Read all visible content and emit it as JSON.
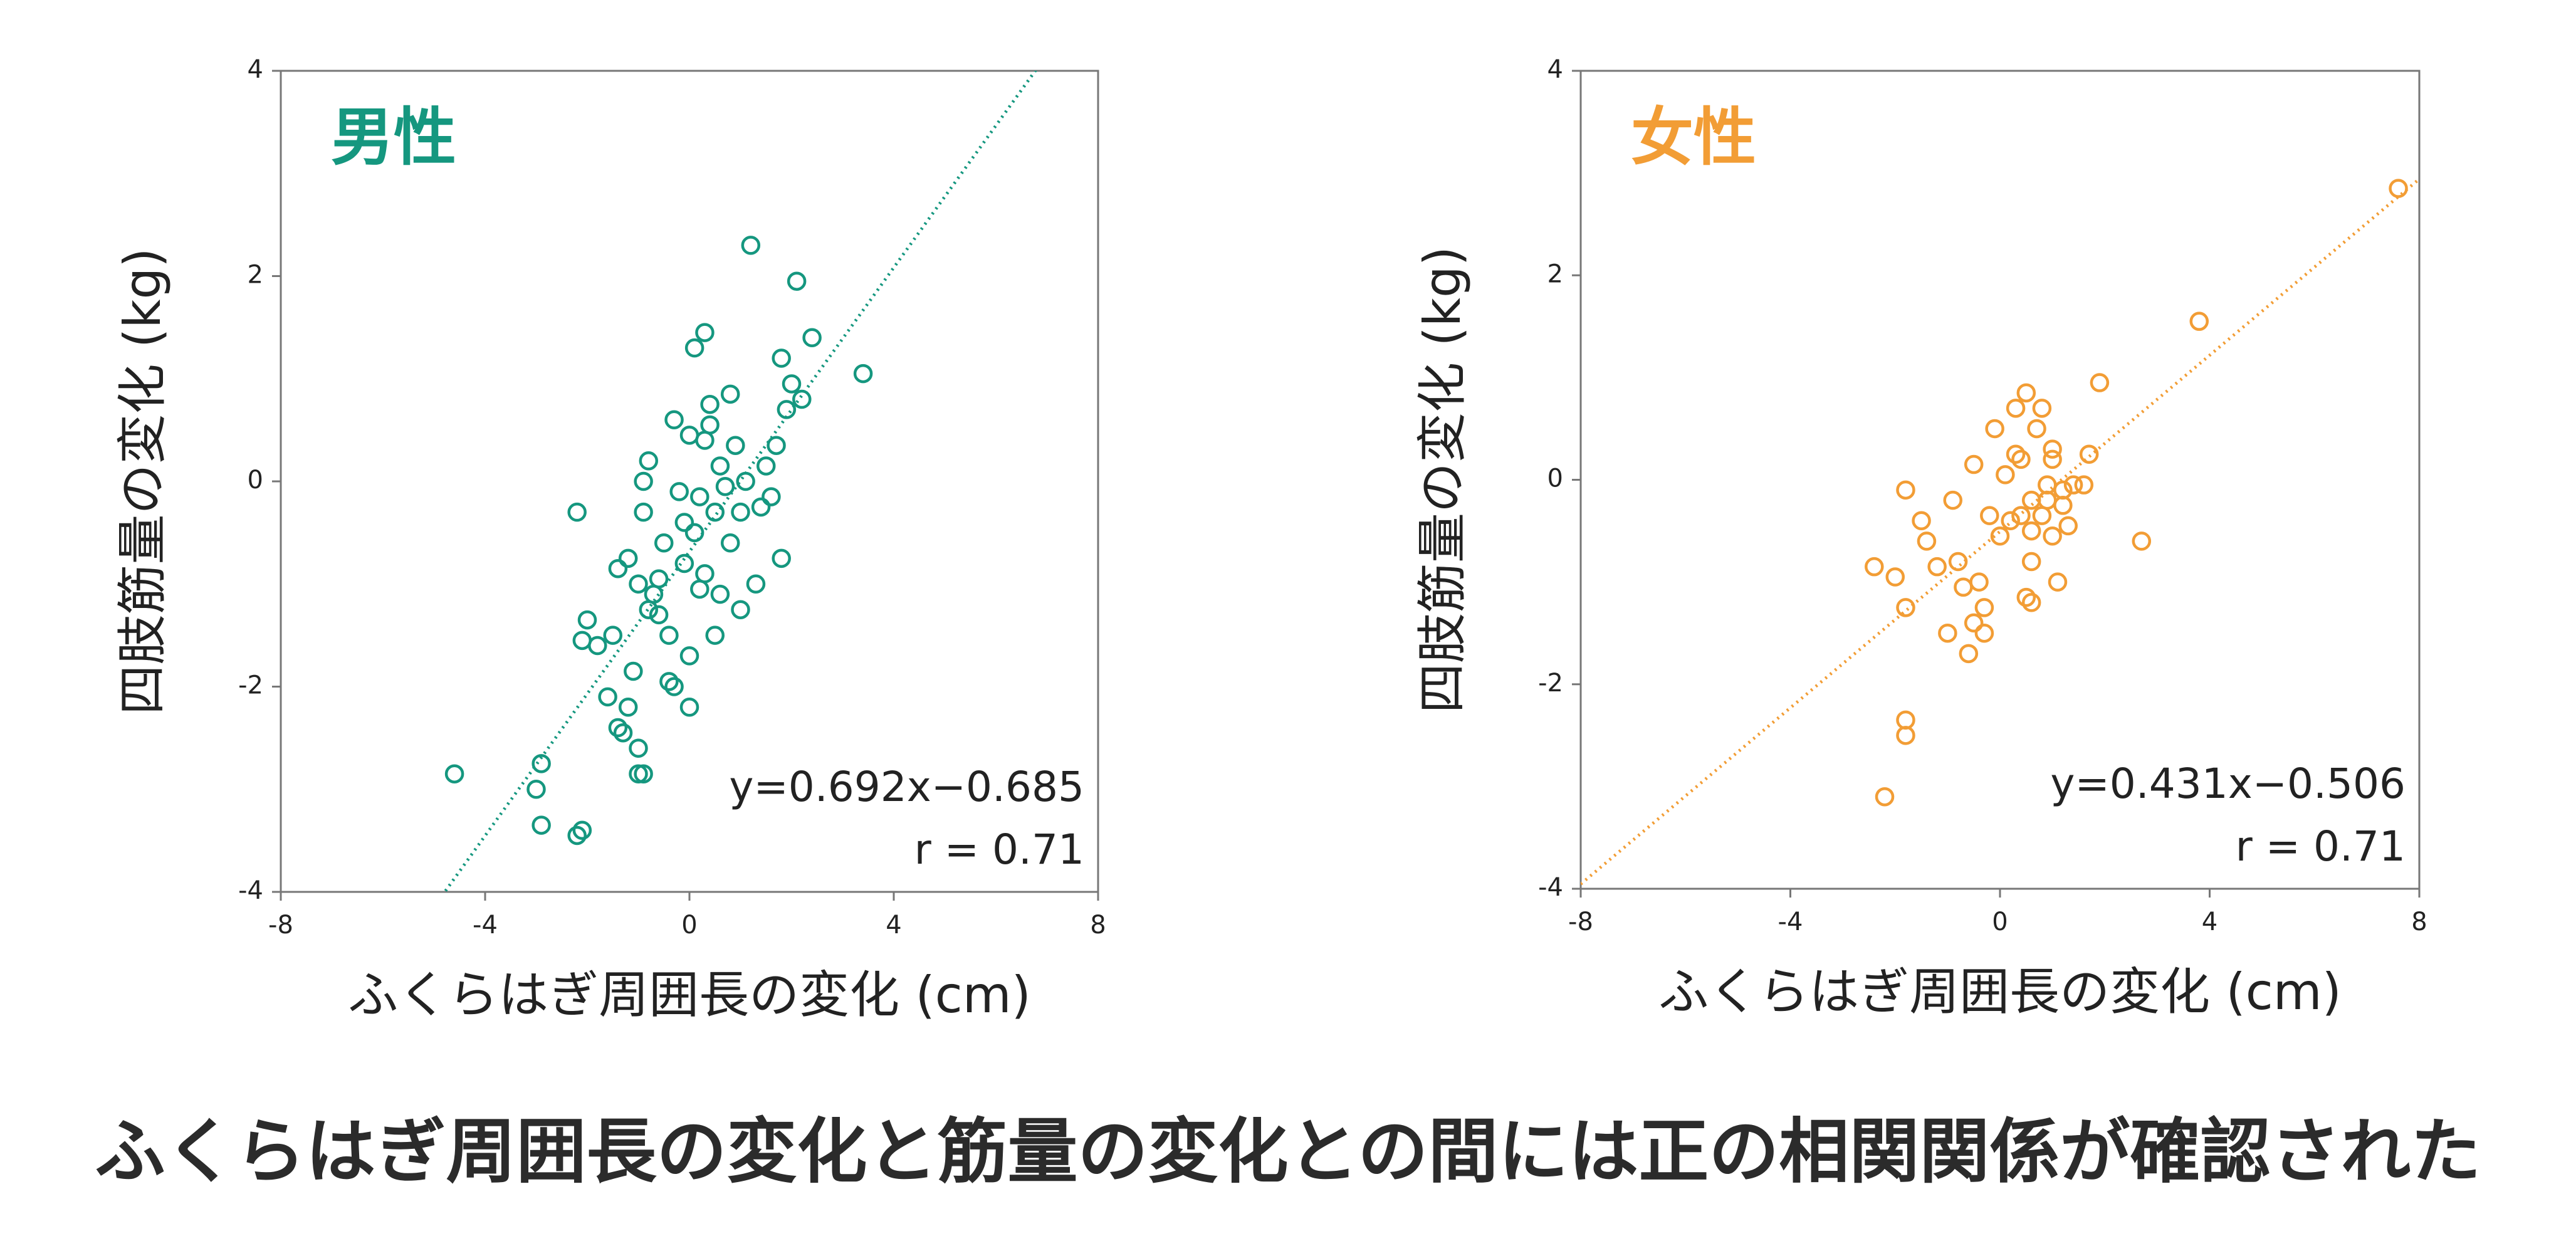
{
  "caption": "ふくらはぎ周囲長の変化と筋量の変化との間には正の相関関係が確認された",
  "chart_data": [
    {
      "type": "scatter",
      "title": "男性",
      "color": "#15977f",
      "x_label": "ふくらはぎ周囲長の変化 (cm)",
      "y_label": "四肢筋量の変化 (kg)",
      "equation": "y=0.692x−0.685",
      "r_label": "r = 0.71",
      "fit": {
        "slope": 0.692,
        "intercept": -0.685
      },
      "xlim": [
        -8,
        8
      ],
      "ylim": [
        -4,
        4
      ],
      "xticks": [
        -8,
        -4,
        0,
        4,
        8
      ],
      "yticks": [
        -4,
        -2,
        0,
        2,
        4
      ],
      "x": [
        -4.6,
        -2.9,
        -3.0,
        -2.9,
        -2.2,
        -2.1,
        -2.2,
        -2.0,
        -2.1,
        -1.8,
        -1.6,
        -1.4,
        -1.3,
        -1.2,
        -1.0,
        -1.0,
        -0.9,
        -1.4,
        -1.2,
        -1.0,
        -0.9,
        -0.9,
        -0.8,
        -0.7,
        -0.6,
        -0.5,
        -0.4,
        -0.3,
        -0.2,
        -0.1,
        -0.1,
        0.0,
        0.0,
        -0.3,
        0.0,
        0.1,
        0.3,
        0.3,
        0.4,
        0.5,
        0.6,
        0.6,
        0.8,
        0.8,
        1.0,
        1.0,
        1.1,
        1.2,
        1.3,
        1.4,
        1.5,
        1.6,
        1.7,
        1.8,
        1.8,
        1.9,
        2.0,
        2.1,
        2.2,
        2.4,
        3.4,
        0.2,
        0.3,
        -0.6,
        -1.5,
        -1.1,
        0.2,
        0.7,
        0.9,
        -0.4,
        0.5,
        -0.8,
        0.1,
        0.4
      ],
      "values": [
        -2.85,
        -2.75,
        -3.0,
        -3.35,
        -3.45,
        -3.4,
        -0.3,
        -1.35,
        -1.55,
        -1.6,
        -2.1,
        -2.4,
        -2.45,
        -2.2,
        -2.6,
        -2.85,
        -2.85,
        -0.85,
        -0.75,
        -1.0,
        -0.3,
        0.0,
        0.2,
        -1.1,
        -1.3,
        -0.6,
        -1.5,
        -2.0,
        -0.1,
        -0.4,
        -0.8,
        -1.7,
        -2.2,
        0.6,
        0.45,
        1.3,
        1.45,
        0.4,
        0.75,
        -0.3,
        -1.1,
        0.15,
        0.85,
        -0.6,
        -0.3,
        -1.25,
        0.0,
        2.3,
        -1.0,
        -0.25,
        0.15,
        -0.15,
        0.35,
        -0.75,
        1.2,
        0.7,
        0.95,
        1.95,
        0.8,
        1.4,
        1.05,
        -1.05,
        -0.9,
        -0.95,
        -1.5,
        -1.85,
        -0.15,
        -0.05,
        0.35,
        -1.95,
        -1.5,
        -1.25,
        -0.5,
        0.55
      ]
    },
    {
      "type": "scatter",
      "title": "女性",
      "color": "#f29d35",
      "x_label": "ふくらはぎ周囲長の変化 (cm)",
      "y_label": "四肢筋量の変化 (kg)",
      "equation": "y=0.431x−0.506",
      "r_label": "r = 0.71",
      "fit": {
        "slope": 0.431,
        "intercept": -0.506
      },
      "xlim": [
        -8,
        8
      ],
      "ylim": [
        -4,
        4
      ],
      "xticks": [
        -8,
        -4,
        0,
        4,
        8
      ],
      "yticks": [
        -4,
        -2,
        0,
        2,
        4
      ],
      "x": [
        -2.4,
        -2.0,
        -2.2,
        -1.8,
        -1.8,
        -1.8,
        -1.8,
        -1.5,
        -1.4,
        -1.2,
        -1.0,
        -0.9,
        -0.8,
        -0.7,
        -0.6,
        -0.5,
        -0.5,
        -0.4,
        -0.3,
        -0.3,
        -0.2,
        -0.1,
        0.0,
        0.1,
        0.3,
        0.3,
        0.4,
        0.5,
        0.5,
        0.6,
        0.6,
        0.7,
        0.8,
        0.9,
        0.9,
        1.0,
        1.0,
        1.1,
        1.2,
        1.3,
        1.4,
        1.6,
        1.7,
        1.9,
        2.7,
        3.8,
        7.6,
        0.6,
        0.6,
        0.8,
        1.0,
        1.2,
        0.2,
        0.4
      ],
      "values": [
        -0.85,
        -0.95,
        -3.1,
        -0.1,
        -1.25,
        -2.35,
        -2.5,
        -0.4,
        -0.6,
        -0.85,
        -1.5,
        -0.2,
        -0.8,
        -1.05,
        -1.7,
        -1.4,
        0.15,
        -1.0,
        -1.25,
        -1.5,
        -0.35,
        0.5,
        -0.55,
        0.05,
        0.7,
        0.25,
        -0.35,
        -1.15,
        0.85,
        -0.5,
        -0.8,
        0.5,
        0.7,
        -0.2,
        -0.05,
        0.3,
        -0.55,
        -1.0,
        -0.25,
        -0.45,
        -0.05,
        -0.05,
        0.25,
        0.95,
        -0.6,
        1.55,
        2.85,
        -1.2,
        -0.2,
        -0.35,
        0.2,
        -0.1,
        -0.4,
        0.2
      ]
    }
  ]
}
